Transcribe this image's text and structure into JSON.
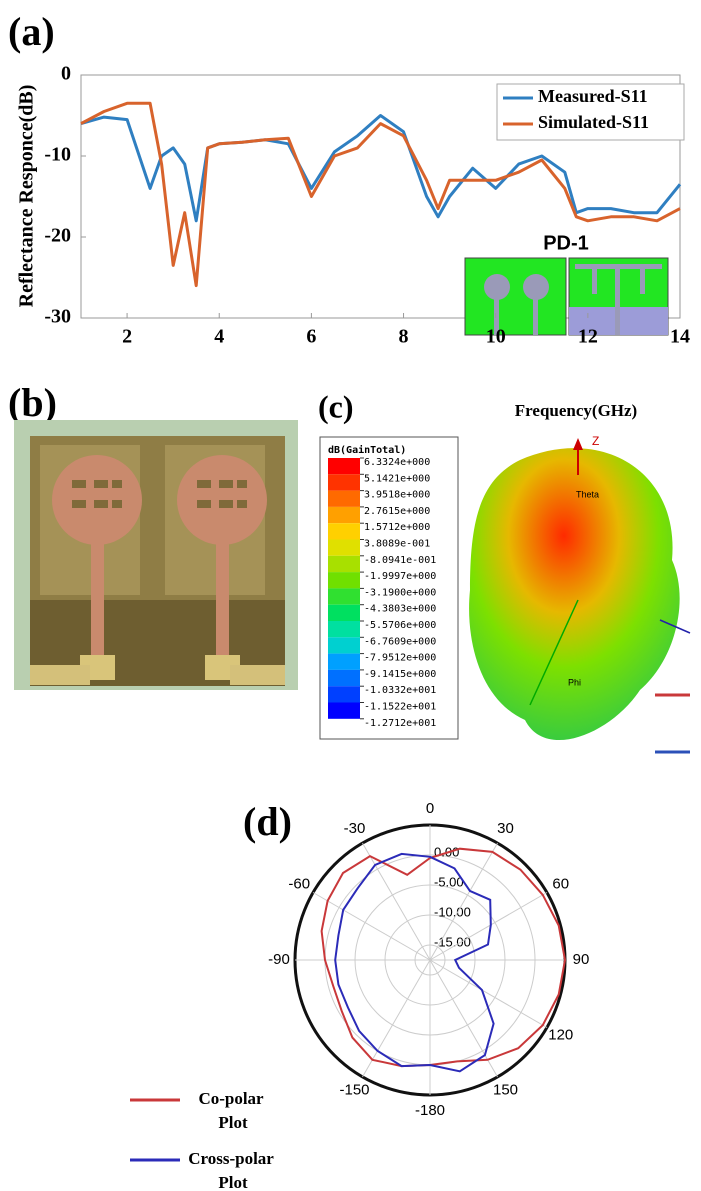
{
  "chart_data": [
    {
      "type": "line",
      "panel_label": "(a)",
      "x_label": "Frequency(GHz)",
      "y_label": "Reflectance Responce(dB)",
      "x": [
        1,
        1.5,
        2,
        2.5,
        2.75,
        3,
        3.25,
        3.5,
        3.75,
        4,
        4.5,
        5,
        5.5,
        6,
        6.5,
        7,
        7.5,
        8,
        8.5,
        8.75,
        9,
        9.5,
        10,
        10.5,
        11,
        11.5,
        11.75,
        12,
        12.5,
        13,
        13.5,
        14
      ],
      "series": [
        {
          "name": "Measured-S11",
          "color": "#2f7fc1",
          "values": [
            -6,
            -5.2,
            -5.5,
            -14,
            -10,
            -9,
            -11,
            -18,
            -9,
            -8.5,
            -8.3,
            -8,
            -8.5,
            -14,
            -9.5,
            -7.5,
            -5,
            -7,
            -15,
            -17.5,
            -15,
            -11.5,
            -14,
            -11,
            -10,
            -12,
            -17,
            -16.5,
            -16.5,
            -17,
            -17,
            -13.5
          ]
        },
        {
          "name": "Simulated-S11",
          "color": "#d8632c",
          "values": [
            -6,
            -4.5,
            -3.5,
            -3.5,
            -11,
            -23.5,
            -17,
            -26,
            -9,
            -8.5,
            -8.3,
            -8,
            -7.8,
            -15,
            -10,
            -9,
            -6,
            -7.5,
            -13,
            -16.5,
            -13,
            -13,
            -13,
            -12,
            -10.5,
            -14,
            -17.5,
            -18,
            -17.5,
            -17.5,
            -18,
            -16.5
          ]
        }
      ],
      "xlim": [
        1,
        14
      ],
      "xticks": [
        2,
        4,
        6,
        8,
        10,
        12,
        14
      ],
      "ylim": [
        -30,
        0
      ],
      "yticks": [
        0,
        -10,
        -20,
        -30
      ],
      "legend": "upper right",
      "inset_label": "PD-1"
    },
    {
      "type": "pattern3d",
      "panel_label": "(c)",
      "colorbar_title": "dB(GainTotal)",
      "colorbar_ticks": [
        {
          "value": 6.3324,
          "label": "6.3324e+000"
        },
        {
          "value": 5.1421,
          "label": "5.1421e+000"
        },
        {
          "value": 3.9518,
          "label": "3.9518e+000"
        },
        {
          "value": 2.7615,
          "label": "2.7615e+000"
        },
        {
          "value": 1.5712,
          "label": "1.5712e+000"
        },
        {
          "value": 0.38089,
          "label": "3.8089e-001"
        },
        {
          "value": -0.80941,
          "label": "-8.0941e-001"
        },
        {
          "value": -1.9997,
          "label": "-1.9997e+000"
        },
        {
          "value": -3.19,
          "label": "-3.1900e+000"
        },
        {
          "value": -4.3803,
          "label": "-4.3803e+000"
        },
        {
          "value": -5.5706,
          "label": "-5.5706e+000"
        },
        {
          "value": -6.7609,
          "label": "-6.7609e+000"
        },
        {
          "value": -7.9512,
          "label": "-7.9512e+000"
        },
        {
          "value": -9.1415,
          "label": "-9.1415e+000"
        },
        {
          "value": -10.332,
          "label": "-1.0332e+001"
        },
        {
          "value": -11.522,
          "label": "-1.1522e+001"
        },
        {
          "value": -12.712,
          "label": "-1.2712e+001"
        }
      ],
      "colors": [
        "#ff0000",
        "#ff3300",
        "#ff6a00",
        "#ffa000",
        "#ffd000",
        "#e0e000",
        "#a8e000",
        "#70e000",
        "#30e030",
        "#00e060",
        "#00e0a0",
        "#00d0d0",
        "#00a0ff",
        "#0070ff",
        "#0040ff",
        "#0000ff"
      ],
      "axis_labels": [
        "Z",
        "Theta",
        "Phi"
      ]
    },
    {
      "type": "polar",
      "panel_label": "(d)",
      "theta": [
        0,
        15,
        30,
        45,
        60,
        75,
        90,
        105,
        120,
        135,
        150,
        165,
        180,
        195,
        210,
        225,
        240,
        255,
        270,
        285,
        300,
        315,
        330,
        345
      ],
      "series": [
        {
          "name": "Co-polar Plot",
          "color": "#c9383a",
          "values": [
            -0.5,
            1.7,
            3.3,
            3.8,
            4.2,
            4.7,
            5.0,
            4.7,
            4.2,
            3.3,
            1.7,
            0,
            0,
            0.8,
            1.7,
            0.8,
            -0.5,
            -0.8,
            0,
            1.2,
            2.2,
            3.0,
            2.5,
            -2.8
          ]
        },
        {
          "name": "Cross-polar Plot",
          "color": "#2b2bb8",
          "values": [
            -0.3,
            -1.7,
            -4.2,
            -3.3,
            -5.8,
            -7.5,
            -13.3,
            -12.5,
            -7.5,
            -2.5,
            0.8,
            1.7,
            0,
            0.8,
            0,
            -0.8,
            -1.7,
            -1.7,
            -1.7,
            -1.7,
            -0.8,
            -0.5,
            0.8,
            0.8
          ]
        }
      ],
      "angle_ticks": [
        0,
        30,
        60,
        90,
        120,
        150,
        {
          "value": 180,
          "label": "-180"
        },
        {
          "value": 210,
          "label": "-150"
        },
        {
          "value": 270,
          "label": "-90"
        },
        {
          "value": 300,
          "label": "-60"
        },
        {
          "value": 330,
          "label": "-30"
        }
      ],
      "rlim": [
        -17.5,
        5
      ],
      "rticks": [
        {
          "value": 0,
          "label": "0.00"
        },
        {
          "value": -5,
          "label": "-5.00"
        },
        {
          "value": -10,
          "label": "-10.00"
        },
        {
          "value": -15,
          "label": "-15.00"
        }
      ]
    }
  ],
  "photo": {
    "panel_label": "(b)"
  }
}
